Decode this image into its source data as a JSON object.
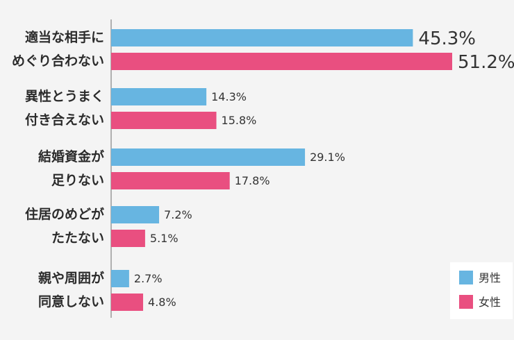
{
  "chart_data": {
    "type": "bar",
    "orientation": "horizontal",
    "categories": [
      [
        "適当な相手に",
        "めぐり合わない"
      ],
      [
        "異性とうまく",
        "付き合えない"
      ],
      [
        "結婚資金が",
        "足りない"
      ],
      [
        "住居のめどが",
        "たたない"
      ],
      [
        "親や周囲が",
        "同意しない"
      ]
    ],
    "series": [
      {
        "name": "男性",
        "color": "#67b5e1",
        "values": [
          45.3,
          14.3,
          29.1,
          7.2,
          2.7
        ],
        "value_labels": [
          "45.3%",
          "14.3%",
          "29.1%",
          "7.2%",
          "2.7%"
        ]
      },
      {
        "name": "女性",
        "color": "#e94f80",
        "values": [
          51.2,
          15.8,
          17.8,
          5.1,
          4.8
        ],
        "value_labels": [
          "51.2%",
          "15.8%",
          "17.8%",
          "5.1%",
          "4.8%"
        ]
      }
    ],
    "legend_position": "bottom-right",
    "grid": false,
    "xlim": [
      0,
      51.2
    ]
  }
}
